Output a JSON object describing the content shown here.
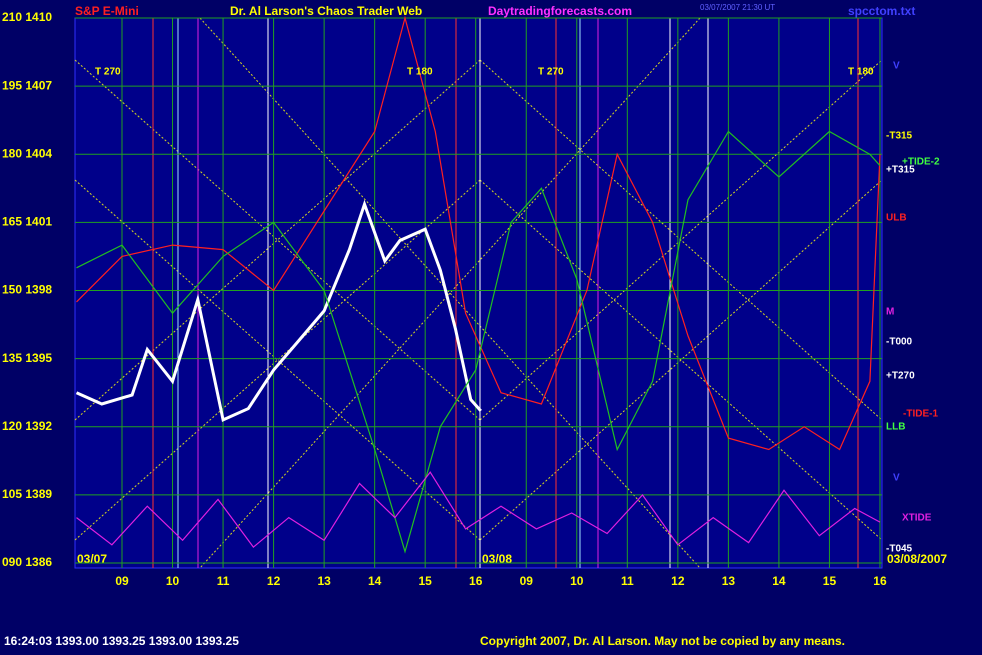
{
  "chart_data": {
    "type": "line",
    "title": "Dr. Al Larson's Chaos Trader Web",
    "symbol": "S&P E-Mini",
    "site": "Daytradingforecasts.com",
    "file": "spcctom.txt",
    "stamp": "03/07/2007 21:30 UT",
    "quote": "16:24:03  1393.00 1393.25 1393.00 1393.25",
    "copyright": "Copyright 2007, Dr. Al Larson. May not be copied by any means.",
    "dates": [
      "03/07",
      "03/08",
      "03/08/2007"
    ],
    "annotations": [
      "T 270",
      "T 180",
      "T 270",
      "T 180",
      "-T315",
      "+TIDE-2",
      "+T315",
      "ULB",
      "M",
      "-T000",
      "+T270",
      "-TIDE-1",
      "LLB",
      "V",
      "XTIDE",
      "-T045",
      "V"
    ],
    "xlim": [
      8.07,
      24.04
    ],
    "xticks": [
      {
        "value": 9,
        "label": "09"
      },
      10,
      11,
      12,
      13,
      14,
      15,
      16,
      {
        "value": 17,
        "label": "09"
      },
      {
        "value": 18,
        "label": "10"
      },
      {
        "value": 19,
        "label": "11"
      },
      {
        "value": 20,
        "label": "12"
      },
      {
        "value": 21,
        "label": "13"
      },
      {
        "value": 22,
        "label": "14"
      },
      {
        "value": 23,
        "label": "15"
      },
      {
        "value": 24,
        "label": "16"
      }
    ],
    "ylim": [
      1386,
      1410
    ],
    "yticks": [
      {
        "value": 1386,
        "label": "090 1386"
      },
      {
        "value": 1389,
        "label": "105 1389"
      },
      {
        "value": 1392,
        "label": "120 1392"
      },
      {
        "value": 1395,
        "label": "135 1395"
      },
      {
        "value": 1398,
        "label": "150 1398"
      },
      {
        "value": 1401,
        "label": "165 1401"
      },
      {
        "value": 1404,
        "label": "180 1404"
      },
      {
        "value": 1407,
        "label": "195 1407"
      },
      {
        "value": 1410,
        "label": "210 1410"
      }
    ],
    "grid": true,
    "series": [
      {
        "color": "#ffffff",
        "x": [
          8.1,
          8.6,
          9.2,
          9.5,
          10.0,
          10.5,
          11.0,
          11.5,
          12.0,
          12.5,
          13.0,
          13.5,
          13.8,
          14.2,
          14.5,
          15.0,
          15.3,
          15.6,
          15.9,
          16.1
        ],
        "values": [
          1393.5,
          1393.0,
          1393.4,
          1395.4,
          1394.0,
          1397.6,
          1392.3,
          1392.8,
          1394.5,
          1395.8,
          1397.1,
          1399.8,
          1401.8,
          1399.3,
          1400.2,
          1400.7,
          1398.9,
          1396.3,
          1393.2,
          1392.7
        ]
      },
      {
        "color": "#ff2020",
        "x": [
          8.1,
          9.0,
          10.0,
          11.0,
          12.0,
          13.0,
          14.0,
          14.6,
          15.2,
          15.8,
          16.5,
          17.3,
          18.2,
          18.8,
          19.5,
          20.2,
          21.0,
          21.8,
          22.5,
          23.2,
          23.8,
          24.0
        ],
        "values": [
          1397.5,
          1399.5,
          1400.0,
          1399.8,
          1398.0,
          1401.5,
          1405.0,
          1410.0,
          1405.0,
          1397.0,
          1393.5,
          1393.0,
          1398.0,
          1404.0,
          1401.0,
          1396.0,
          1391.5,
          1391.0,
          1392.0,
          1391.0,
          1394.0,
          1404.0
        ]
      },
      {
        "color": "#20c020",
        "x": [
          8.1,
          9.0,
          10.0,
          11.0,
          12.0,
          13.0,
          14.0,
          14.6,
          15.3,
          16.0,
          16.7,
          17.3,
          18.0,
          18.8,
          19.5,
          20.2,
          21.0,
          22.0,
          23.0,
          23.8,
          24.0
        ],
        "values": [
          1399.0,
          1400.0,
          1397.0,
          1399.5,
          1401.0,
          1398.0,
          1391.0,
          1386.5,
          1392.0,
          1394.5,
          1401.0,
          1402.5,
          1398.5,
          1391.0,
          1394.0,
          1402.0,
          1405.0,
          1403.0,
          1405.0,
          1404.0,
          1403.5
        ]
      },
      {
        "color": "#e020e0",
        "x": [
          8.1,
          8.8,
          9.5,
          10.2,
          10.9,
          11.6,
          12.3,
          13.0,
          13.7,
          14.4,
          15.1,
          15.8,
          16.5,
          17.2,
          17.9,
          18.6,
          19.3,
          20.0,
          20.7,
          21.4,
          22.1,
          22.8,
          23.5,
          24.0
        ],
        "values": [
          1388.0,
          1386.8,
          1388.5,
          1387.0,
          1388.8,
          1386.7,
          1388.0,
          1387.0,
          1389.5,
          1388.0,
          1390.0,
          1387.5,
          1388.5,
          1387.5,
          1388.2,
          1387.3,
          1389.0,
          1386.8,
          1388.0,
          1386.9,
          1389.2,
          1387.2,
          1388.4,
          1387.8
        ]
      }
    ]
  }
}
